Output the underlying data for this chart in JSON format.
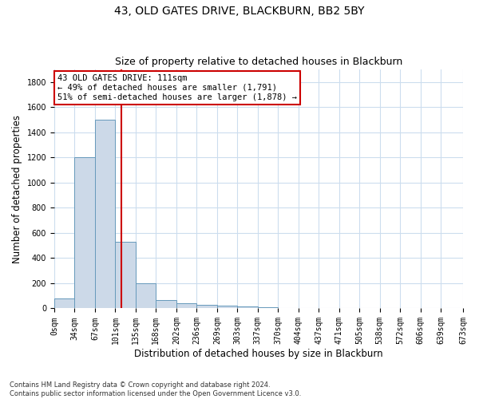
{
  "title1": "43, OLD GATES DRIVE, BLACKBURN, BB2 5BY",
  "title2": "Size of property relative to detached houses in Blackburn",
  "xlabel": "Distribution of detached houses by size in Blackburn",
  "ylabel": "Number of detached properties",
  "footnote": "Contains HM Land Registry data © Crown copyright and database right 2024.\nContains public sector information licensed under the Open Government Licence v3.0.",
  "bin_edges": [
    0,
    33.5,
    67,
    100.5,
    134,
    167.5,
    201,
    234.5,
    268,
    301.5,
    335,
    368.5,
    402,
    435.5,
    469,
    502.5,
    536,
    569.5,
    603,
    636.5,
    673
  ],
  "bar_values": [
    80,
    1200,
    1500,
    530,
    200,
    65,
    40,
    30,
    25,
    15,
    8,
    5,
    3,
    2,
    1,
    1,
    0,
    0,
    0,
    0
  ],
  "bar_color": "#ccd9e8",
  "bar_edge_color": "#6699bb",
  "property_size": 111,
  "red_line_color": "#cc0000",
  "annotation_text": "43 OLD GATES DRIVE: 111sqm\n← 49% of detached houses are smaller (1,791)\n51% of semi-detached houses are larger (1,878) →",
  "annotation_box_color": "#ffffff",
  "annotation_border_color": "#cc0000",
  "ylim": [
    0,
    1900
  ],
  "yticks": [
    0,
    200,
    400,
    600,
    800,
    1000,
    1200,
    1400,
    1600,
    1800
  ],
  "xtick_labels": [
    "0sqm",
    "34sqm",
    "67sqm",
    "101sqm",
    "135sqm",
    "168sqm",
    "202sqm",
    "236sqm",
    "269sqm",
    "303sqm",
    "337sqm",
    "370sqm",
    "404sqm",
    "437sqm",
    "471sqm",
    "505sqm",
    "538sqm",
    "572sqm",
    "606sqm",
    "639sqm",
    "673sqm"
  ],
  "background_color": "#ffffff",
  "grid_color": "#ccddee",
  "title1_fontsize": 10,
  "title2_fontsize": 9,
  "axis_label_fontsize": 8.5,
  "tick_fontsize": 7,
  "annotation_fontsize": 7.5,
  "footnote_fontsize": 6
}
